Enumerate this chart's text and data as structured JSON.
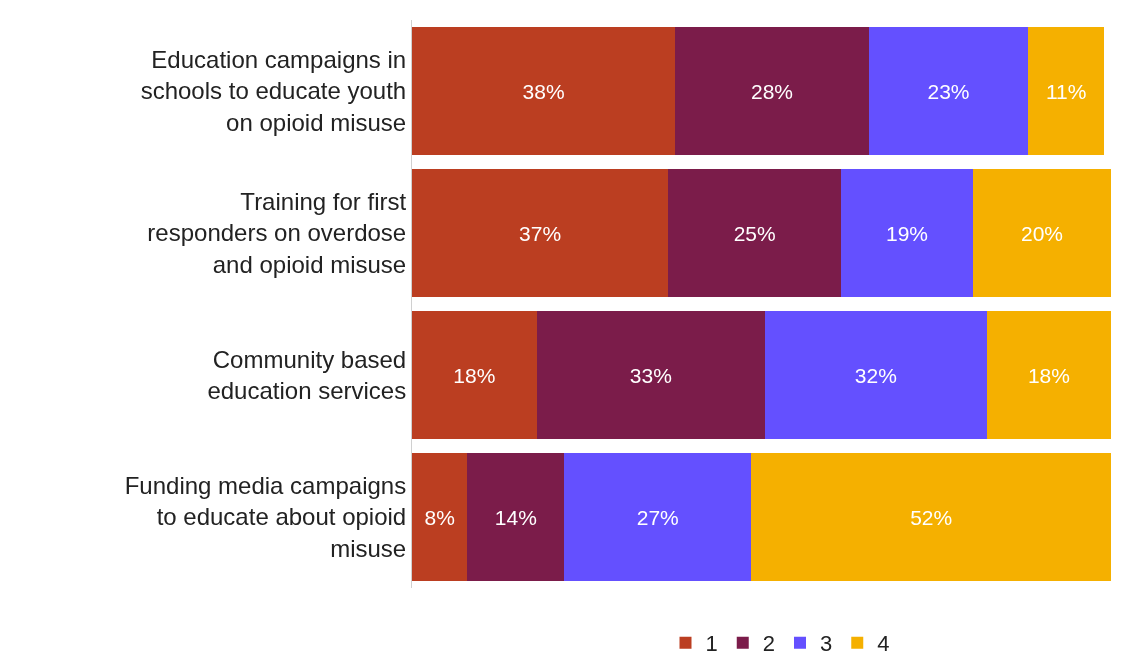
{
  "chart_data": {
    "type": "bar",
    "orientation": "horizontal",
    "stacked": true,
    "legend": "bottom",
    "grid": false,
    "categories": [
      "Education campaigns in schools to educate youth on opioid misuse",
      "Training for first responders on overdose and opioid misuse",
      "Community based education services",
      "Funding media campaigns to educate about opioid misuse"
    ],
    "series": [
      {
        "name": "1",
        "color": "#bb3e21",
        "values": [
          38,
          37,
          18,
          8
        ],
        "value_labels": [
          "38%",
          "37%",
          "18%",
          "8%"
        ]
      },
      {
        "name": "2",
        "color": "#7b1c4a",
        "values": [
          28,
          25,
          33,
          14
        ],
        "value_labels": [
          "28%",
          "25%",
          "33%",
          "14%"
        ]
      },
      {
        "name": "3",
        "color": "#6450ff",
        "values": [
          23,
          19,
          32,
          27
        ],
        "value_labels": [
          "23%",
          "19%",
          "32%",
          "27%"
        ]
      },
      {
        "name": "4",
        "color": "#f5b000",
        "values": [
          11,
          20,
          18,
          52
        ],
        "value_labels": [
          "11%",
          "20%",
          "18%",
          "52%"
        ]
      }
    ]
  }
}
